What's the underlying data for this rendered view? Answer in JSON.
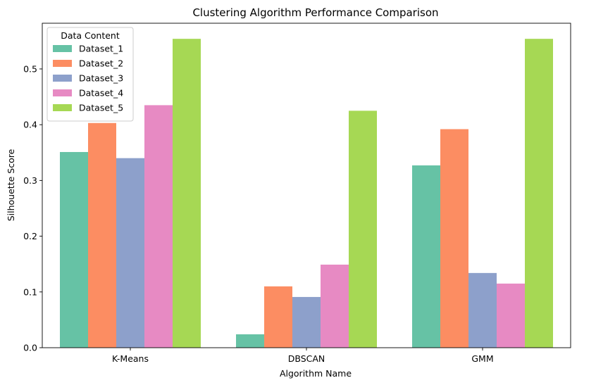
{
  "chart_data": {
    "type": "bar",
    "title": "Clustering Algorithm Performance Comparison",
    "xlabel": "Algorithm Name",
    "ylabel": "Silhouette Score",
    "categories": [
      "K-Means",
      "DBSCAN",
      "GMM"
    ],
    "series": [
      {
        "name": "Dataset_1",
        "color": "#66c2a5",
        "values": [
          0.351,
          0.024,
          0.327
        ]
      },
      {
        "name": "Dataset_2",
        "color": "#fc8d62",
        "values": [
          0.403,
          0.11,
          0.392
        ]
      },
      {
        "name": "Dataset_3",
        "color": "#8da0cb",
        "values": [
          0.34,
          0.091,
          0.134
        ]
      },
      {
        "name": "Dataset_4",
        "color": "#e78ac3",
        "values": [
          0.435,
          0.149,
          0.115
        ]
      },
      {
        "name": "Dataset_5",
        "color": "#a6d854",
        "values": [
          0.554,
          0.425,
          0.554
        ]
      }
    ],
    "ylim": [
      0,
      0.582
    ],
    "yticks": [
      0.0,
      0.1,
      0.2,
      0.3,
      0.4,
      0.5
    ],
    "ytick_labels": [
      "0.0",
      "0.1",
      "0.2",
      "0.3",
      "0.4",
      "0.5"
    ],
    "grid": false,
    "legend": {
      "title": "Data Content",
      "position": "top-left"
    }
  }
}
